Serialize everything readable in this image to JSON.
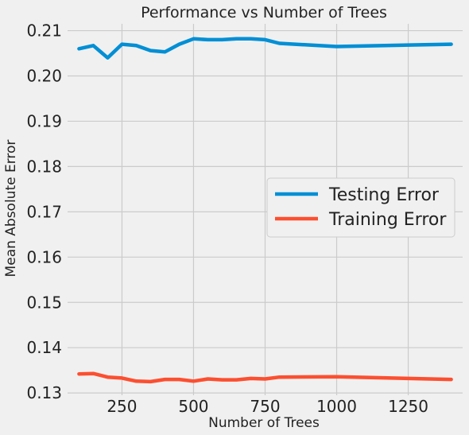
{
  "chart_data": {
    "type": "line",
    "title": "Performance vs Number of Trees",
    "xlabel": "Number of Trees",
    "ylabel": "Mean Absolute Error",
    "xlim": [
      60,
      1440
    ],
    "ylim": [
      0.1295,
      0.2115
    ],
    "xticks": [
      250,
      500,
      750,
      1000,
      1250
    ],
    "yticks": [
      0.13,
      0.14,
      0.15,
      0.16,
      0.17,
      0.18,
      0.19,
      0.2,
      0.21
    ],
    "ytick_labels": [
      "0.13",
      "0.14",
      "0.15",
      "0.16",
      "0.17",
      "0.18",
      "0.19",
      "0.20",
      "0.21"
    ],
    "grid": true,
    "legend_position": "center-right",
    "x": [
      100,
      150,
      200,
      250,
      300,
      350,
      400,
      450,
      500,
      550,
      600,
      650,
      700,
      750,
      800,
      1000,
      1400
    ],
    "series": [
      {
        "name": "Testing Error",
        "color": "#008fd5",
        "values": [
          0.206,
          0.2067,
          0.204,
          0.207,
          0.2067,
          0.2056,
          0.2053,
          0.207,
          0.2082,
          0.208,
          0.208,
          0.2082,
          0.2082,
          0.208,
          0.2072,
          0.2065,
          0.207
        ]
      },
      {
        "name": "Training Error",
        "color": "#fc4f30",
        "values": [
          0.1342,
          0.1343,
          0.1335,
          0.1333,
          0.1326,
          0.1325,
          0.133,
          0.133,
          0.1326,
          0.1331,
          0.1329,
          0.1329,
          0.1332,
          0.1331,
          0.1335,
          0.1336,
          0.133
        ]
      }
    ]
  }
}
